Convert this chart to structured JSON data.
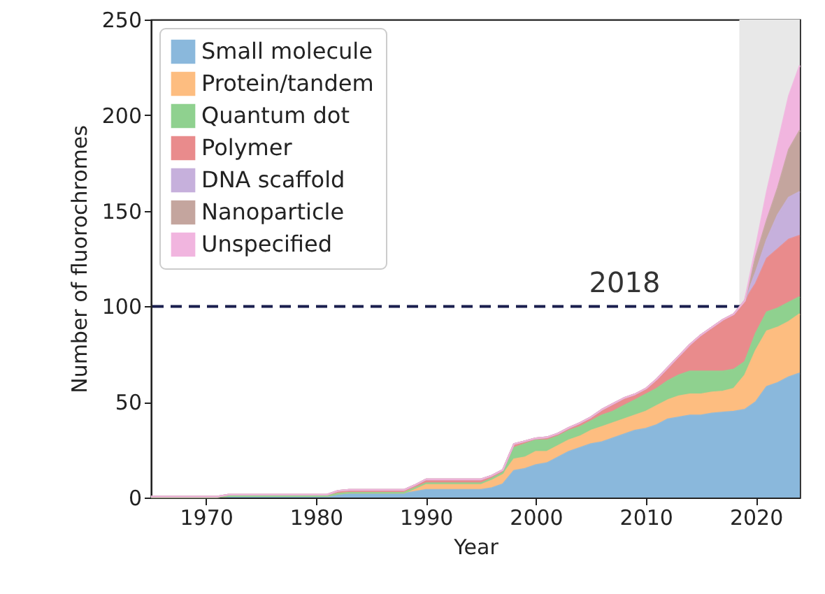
{
  "chart_data": {
    "type": "area",
    "stacked": true,
    "xlabel": "Year",
    "ylabel": "Number of fluorochromes",
    "x": [
      1965,
      1966,
      1967,
      1968,
      1969,
      1970,
      1971,
      1972,
      1973,
      1974,
      1975,
      1976,
      1977,
      1978,
      1979,
      1980,
      1981,
      1982,
      1983,
      1984,
      1985,
      1986,
      1987,
      1988,
      1989,
      1990,
      1991,
      1992,
      1993,
      1994,
      1995,
      1996,
      1997,
      1998,
      1999,
      2000,
      2001,
      2002,
      2003,
      2004,
      2005,
      2006,
      2007,
      2008,
      2009,
      2010,
      2011,
      2012,
      2013,
      2014,
      2015,
      2016,
      2017,
      2018,
      2019,
      2020,
      2021,
      2022,
      2023,
      2024
    ],
    "series": [
      {
        "name": "Small molecule",
        "color": "#8ab8dc",
        "values": [
          0.3,
          0.3,
          0.3,
          0.3,
          0.3,
          0.3,
          0.3,
          0.8,
          0.8,
          0.8,
          0.8,
          0.8,
          0.8,
          0.8,
          0.8,
          0.8,
          0.8,
          1.5,
          2,
          2,
          2,
          2,
          2,
          2,
          3,
          4,
          4,
          4,
          4,
          4,
          4,
          5,
          7,
          14,
          15,
          17,
          18,
          21,
          24,
          26,
          28,
          29,
          31,
          33,
          35,
          36,
          38,
          41,
          42,
          43,
          43,
          44,
          44.5,
          45,
          46,
          50,
          58,
          60,
          63,
          65
        ]
      },
      {
        "name": "Protein/tandem",
        "color": "#fdbd80",
        "values": [
          0,
          0,
          0,
          0,
          0,
          0,
          0,
          0,
          0,
          0,
          0,
          0,
          0,
          0,
          0,
          0,
          0,
          0.5,
          0.5,
          0.5,
          0.5,
          0.5,
          0.5,
          0.5,
          2,
          3,
          3,
          3,
          3,
          3,
          3,
          4,
          5,
          6,
          6,
          7,
          6,
          6,
          6,
          6,
          7,
          8,
          8,
          8,
          8,
          9,
          10,
          10,
          11,
          11,
          11,
          11,
          11,
          12,
          18,
          27,
          29,
          29,
          29,
          31
        ]
      },
      {
        "name": "Quantum dot",
        "color": "#8fd18f",
        "values": [
          0,
          0,
          0,
          0,
          0,
          0,
          0,
          0,
          0,
          0,
          0,
          0,
          0,
          0,
          0,
          0,
          0,
          0,
          0,
          0,
          0,
          0,
          0,
          0,
          0,
          0.5,
          0.5,
          0.5,
          0.5,
          0.5,
          0.5,
          1,
          1,
          6,
          7,
          6,
          6,
          5,
          5,
          5,
          5,
          6,
          6,
          7,
          8,
          9,
          9,
          10,
          11,
          12,
          12,
          11,
          10.5,
          10,
          7,
          9,
          10,
          10,
          10,
          9
        ]
      },
      {
        "name": "Polymer",
        "color": "#e98b8c",
        "values": [
          0.2,
          0.2,
          0.2,
          0.2,
          0.2,
          0.2,
          0.2,
          0.7,
          0.7,
          0.7,
          0.7,
          0.7,
          0.7,
          0.7,
          0.7,
          0.7,
          0.7,
          1.5,
          1.5,
          1.5,
          1.5,
          1.5,
          1.5,
          1.5,
          1.5,
          2,
          2,
          2,
          2,
          2,
          2,
          1.5,
          1.5,
          2,
          1.5,
          1,
          1.5,
          1.5,
          1.5,
          2,
          2,
          3,
          4,
          4,
          3,
          3,
          5,
          7,
          10,
          14,
          19,
          23,
          27,
          29,
          32,
          26,
          28,
          31,
          33,
          32
        ]
      },
      {
        "name": "DNA scaffold",
        "color": "#c6b0dc",
        "values": [
          0,
          0,
          0,
          0,
          0,
          0,
          0,
          0,
          0,
          0,
          0,
          0,
          0,
          0,
          0,
          0,
          0,
          0,
          0,
          0,
          0,
          0,
          0,
          0,
          0,
          0,
          0,
          0,
          0,
          0,
          0,
          0,
          0,
          0,
          0,
          0,
          0,
          0,
          0,
          0,
          0,
          0,
          0,
          0,
          0,
          0,
          0,
          0,
          0,
          0,
          0,
          0,
          0,
          0,
          0,
          6,
          10,
          18,
          22,
          23
        ]
      },
      {
        "name": "Nanoparticle",
        "color": "#c4a59e",
        "values": [
          0,
          0,
          0,
          0,
          0,
          0,
          0,
          0,
          0,
          0,
          0,
          0,
          0,
          0,
          0,
          0,
          0,
          0,
          0,
          0,
          0,
          0,
          0,
          0,
          0,
          0,
          0,
          0,
          0,
          0,
          0,
          0,
          0,
          0,
          0,
          0,
          0,
          0,
          0,
          0,
          0,
          0,
          0,
          0,
          0,
          0,
          0,
          0,
          0,
          0,
          0,
          0,
          0,
          0,
          0,
          8,
          10,
          14,
          25,
          32
        ]
      },
      {
        "name": "Unspecified",
        "color": "#f1b5df",
        "values": [
          0,
          0,
          0,
          0,
          0,
          0,
          0,
          0,
          0,
          0,
          0,
          0,
          0,
          0,
          0,
          0,
          0,
          0,
          0,
          0,
          0,
          0,
          0,
          0,
          0,
          0,
          0,
          0,
          0,
          0,
          0,
          0,
          0,
          0,
          0,
          0,
          0,
          0,
          0,
          0,
          0,
          0,
          0,
          0,
          0,
          0,
          0,
          0,
          0,
          0,
          0,
          0,
          0,
          0,
          0,
          5,
          15,
          23,
          28,
          34
        ]
      }
    ],
    "xlim": [
      1965,
      2024
    ],
    "xticks": [
      1970,
      1980,
      1990,
      2000,
      2010,
      2020
    ],
    "ylim": [
      0,
      250
    ],
    "yticks": [
      0,
      50,
      100,
      150,
      200,
      250
    ],
    "ref_lines": [
      {
        "axis": "y",
        "value": 100,
        "color": "#1a1f4e",
        "line_style": "dashed"
      }
    ],
    "annotations": [
      "2018"
    ],
    "bands": [
      {
        "axis": "x",
        "from": 2018.5,
        "to": 2024,
        "color": "#e8e8e8"
      }
    ],
    "legend": "top left"
  }
}
